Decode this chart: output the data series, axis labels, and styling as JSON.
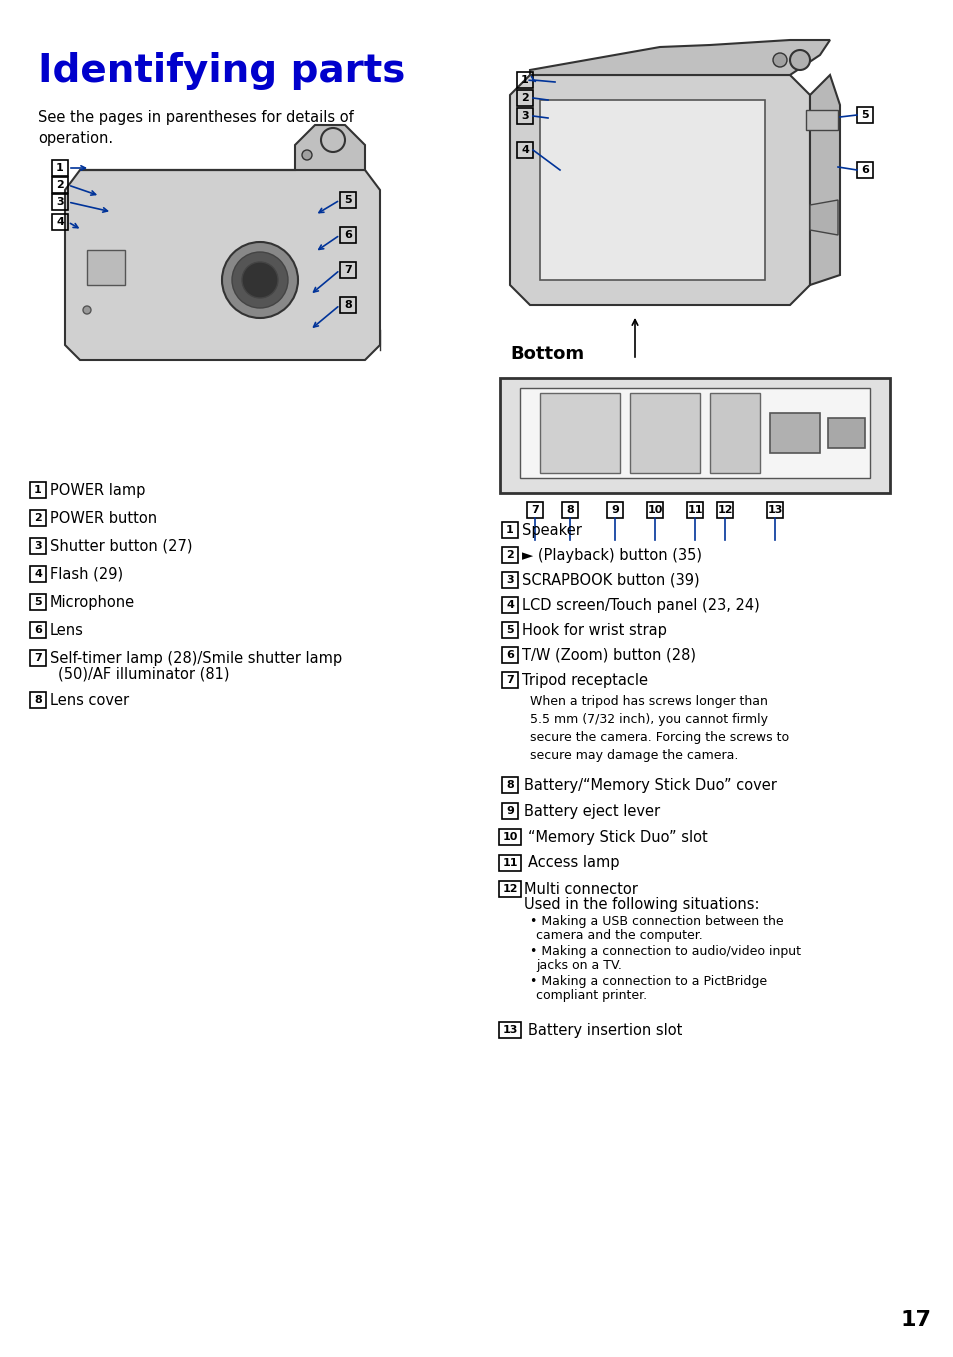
{
  "title": "Identifying parts",
  "title_color": "#0000CC",
  "title_fontsize": 28,
  "bg_color": "#ffffff",
  "intro_text": "See the pages in parentheses for details of\noperation.",
  "left_labels": [
    [
      "1",
      "POWER lamp"
    ],
    [
      "2",
      "POWER button"
    ],
    [
      "3",
      "Shutter button (27)"
    ],
    [
      "4",
      "Flash (29)"
    ],
    [
      "5",
      "Microphone"
    ],
    [
      "6",
      "Lens"
    ],
    [
      "7",
      "Self-timer lamp (28)/Smile shutter lamp\n    (50)/AF illuminator (81)"
    ],
    [
      "8",
      "Lens cover"
    ]
  ],
  "right_labels_top": [
    [
      "1",
      "Speaker"
    ],
    [
      "2",
      "► (Playback) button (35)"
    ],
    [
      "3",
      "SCRAPBOOK button (39)"
    ],
    [
      "4",
      "LCD screen/Touch panel (23, 24)"
    ],
    [
      "5",
      "Hook for wrist strap"
    ],
    [
      "6",
      "T/W (Zoom) button (28)"
    ],
    [
      "7",
      "Tripod receptacle"
    ]
  ],
  "right_tripod_note": "When a tripod has screws longer than\n5.5 mm (7/32 inch), you cannot firmly\nsecure the camera. Forcing the screws to\nsecure may damage the camera.",
  "right_labels_bottom": [
    [
      "8",
      "Battery/“Memory Stick Duo” cover"
    ],
    [
      "9",
      "Battery eject lever"
    ],
    [
      "10",
      "“Memory Stick Duo” slot"
    ],
    [
      "11",
      "Access lamp"
    ],
    [
      "12",
      "Multi connector\n    Used in the following situations:"
    ]
  ],
  "multi_connector_notes": [
    "Making a USB connection between the\ncamera and the computer.",
    "Making a connection to audio/video input\njacks on a TV.",
    "Making a connection to a PictBridge\ncompliant printer."
  ],
  "label_13": [
    "13",
    "Battery insertion slot"
  ],
  "bottom_label": "Bottom",
  "page_number": "17",
  "label_box_color": "#000000",
  "line_color": "#003399",
  "arrow_color": "#003399"
}
